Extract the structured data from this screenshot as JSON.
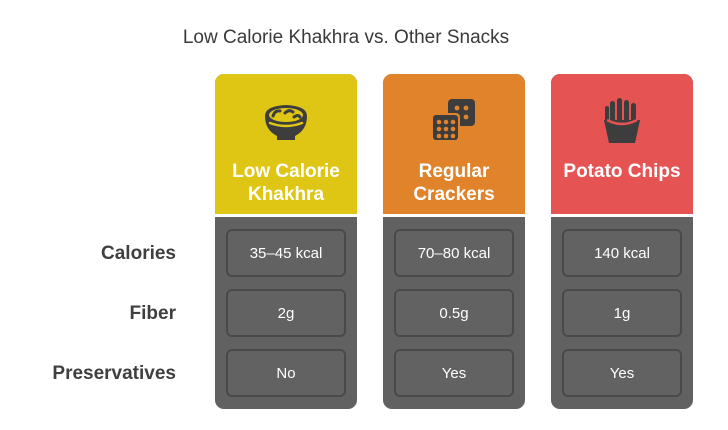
{
  "title": "Low Calorie Khakhra vs. Other Snacks",
  "rows": [
    "Calories",
    "Fiber",
    "Preservatives"
  ],
  "columns": [
    {
      "name_lines": [
        "Low Calorie",
        "Khakhra"
      ],
      "color": "#e0c614",
      "icon": "snack-bowl-icon",
      "values": [
        "35–45 kcal",
        "2g",
        "No"
      ]
    },
    {
      "name_lines": [
        "Regular",
        "Crackers"
      ],
      "color": "#e0832b",
      "icon": "crackers-icon",
      "values": [
        "70–80 kcal",
        "0.5g",
        "Yes"
      ]
    },
    {
      "name_lines": [
        "Potato Chips"
      ],
      "color": "#e55353",
      "icon": "fries-icon",
      "values": [
        "140 kcal",
        "1g",
        "Yes"
      ]
    }
  ]
}
